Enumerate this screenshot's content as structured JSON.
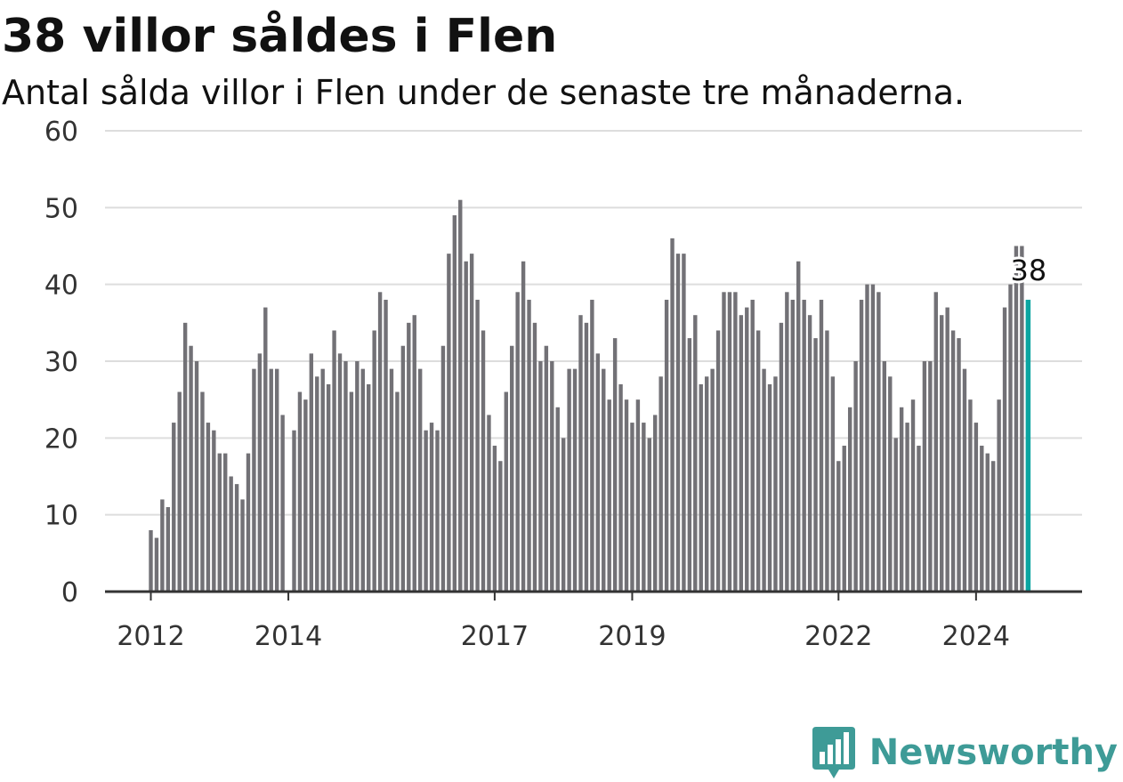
{
  "header": {
    "title": "38 villor såldes i Flen",
    "subtitle": "Antal sålda villor i Flen under de senaste tre månaderna."
  },
  "logo": {
    "text": "Newsworthy",
    "icon": "bar-chart-speech-bubble-icon",
    "color": "#3e9b97"
  },
  "colors": {
    "bar": "#727176",
    "highlight": "#0aa5a1",
    "grid": "#dddddd",
    "axis": "#333333"
  },
  "chart_data": {
    "type": "bar",
    "title": "38 villor såldes i Flen",
    "subtitle": "Antal sålda villor i Flen under de senaste tre månaderna.",
    "xlabel": "",
    "ylabel": "",
    "ylim": [
      0,
      60
    ],
    "yticks": [
      0,
      10,
      20,
      30,
      40,
      50,
      60
    ],
    "xticks": [
      "2012",
      "2014",
      "2017",
      "2019",
      "2022",
      "2024"
    ],
    "x_start": "2012-01",
    "x_end": "2024-10",
    "grid": true,
    "legend": "none",
    "highlight_label": "38",
    "values": [
      8,
      7,
      12,
      11,
      22,
      26,
      35,
      32,
      30,
      26,
      22,
      21,
      18,
      18,
      15,
      14,
      12,
      18,
      29,
      31,
      37,
      29,
      29,
      23,
      0,
      21,
      26,
      25,
      31,
      28,
      29,
      27,
      34,
      31,
      30,
      26,
      30,
      29,
      27,
      34,
      39,
      38,
      29,
      26,
      32,
      35,
      36,
      29,
      21,
      22,
      21,
      32,
      44,
      49,
      51,
      43,
      44,
      38,
      34,
      23,
      19,
      17,
      26,
      32,
      39,
      43,
      38,
      35,
      30,
      32,
      30,
      24,
      20,
      29,
      29,
      36,
      35,
      38,
      31,
      29,
      25,
      33,
      27,
      25,
      22,
      25,
      22,
      20,
      23,
      28,
      38,
      46,
      44,
      44,
      33,
      36,
      27,
      28,
      29,
      34,
      39,
      39,
      39,
      36,
      37,
      38,
      34,
      29,
      27,
      28,
      35,
      39,
      38,
      43,
      38,
      36,
      33,
      38,
      34,
      28,
      17,
      19,
      24,
      30,
      38,
      40,
      40,
      39,
      30,
      28,
      20,
      24,
      22,
      25,
      19,
      30,
      30,
      39,
      36,
      37,
      34,
      33,
      29,
      25,
      22,
      19,
      18,
      17,
      25,
      37,
      40,
      45,
      45,
      38
    ]
  }
}
